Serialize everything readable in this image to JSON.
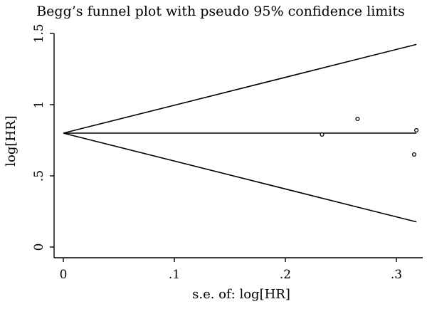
{
  "chart_data": {
    "type": "scatter",
    "title": "Begg’s funnel plot with pseudo 95% confidence limits",
    "xlabel": "s.e. of: log[HR]",
    "ylabel": "log[HR]",
    "xlim": [
      0,
      0.32
    ],
    "ylim": [
      0,
      1.5
    ],
    "x_ticks": [
      0,
      0.1,
      0.2,
      0.3
    ],
    "x_tick_labels": [
      "0",
      ".1",
      ".2",
      ".3"
    ],
    "y_ticks": [
      0,
      0.5,
      1,
      1.5
    ],
    "y_tick_labels": [
      "0",
      ".5",
      "1",
      "1.5"
    ],
    "pooled_estimate": 0.8,
    "ci_line_x_end": 0.318,
    "points": [
      {
        "x": 0.233,
        "y": 0.79
      },
      {
        "x": 0.265,
        "y": 0.9
      },
      {
        "x": 0.318,
        "y": 0.82
      },
      {
        "x": 0.316,
        "y": 0.65
      }
    ],
    "grid": false,
    "legend": "none"
  }
}
